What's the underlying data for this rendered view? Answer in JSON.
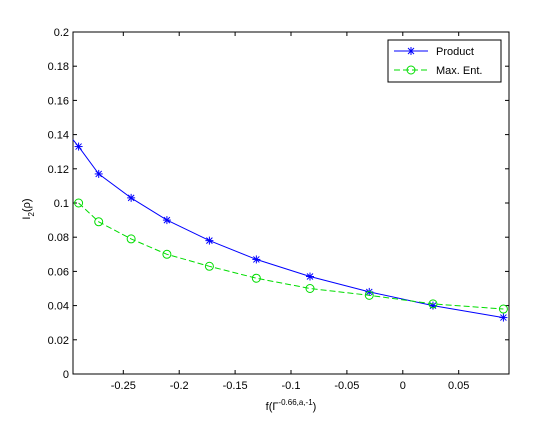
{
  "chart_data": {
    "type": "line",
    "title": "",
    "xlabel": "f(Γ^{-0.66,a,-1})",
    "xlabel_parts": {
      "base": "f(Γ",
      "sup": "-0.66,a,-1",
      "tail": ")"
    },
    "ylabel": "I_2(ρ)",
    "ylabel_parts": {
      "base": "I",
      "sub": "2",
      "tail": "(ρ)"
    },
    "xlim": [
      -0.295,
      0.095
    ],
    "ylim": [
      0,
      0.2
    ],
    "xticks": [
      -0.25,
      -0.2,
      -0.15,
      -0.1,
      -0.05,
      0,
      0.05
    ],
    "xtick_labels": [
      "-0.25",
      "-0.2",
      "-0.15",
      "-0.1",
      "-0.05",
      "0",
      "0.05"
    ],
    "yticks": [
      0,
      0.02,
      0.04,
      0.06,
      0.08,
      0.1,
      0.12,
      0.14,
      0.16,
      0.18,
      0.2
    ],
    "ytick_labels": [
      "0",
      "0.02",
      "0.04",
      "0.06",
      "0.08",
      "0.1",
      "0.12",
      "0.14",
      "0.16",
      "0.18",
      "0.2"
    ],
    "grid": false,
    "legend_position": "top-right",
    "series": [
      {
        "name": "Product",
        "color": "#0000ff",
        "line_style": "solid",
        "marker": "asterisk",
        "curve": [
          [
            -0.295,
            0.137
          ],
          [
            -0.29,
            0.133
          ],
          [
            -0.272,
            0.117
          ],
          [
            -0.243,
            0.103
          ],
          [
            -0.211,
            0.09
          ],
          [
            -0.173,
            0.078
          ],
          [
            -0.131,
            0.067
          ],
          [
            -0.083,
            0.057
          ],
          [
            -0.03,
            0.048
          ],
          [
            0.027,
            0.04
          ],
          [
            0.09,
            0.033
          ]
        ],
        "markers": [
          [
            -0.29,
            0.133
          ],
          [
            -0.272,
            0.117
          ],
          [
            -0.243,
            0.103
          ],
          [
            -0.211,
            0.09
          ],
          [
            -0.173,
            0.078
          ],
          [
            -0.131,
            0.067
          ],
          [
            -0.083,
            0.057
          ],
          [
            -0.03,
            0.048
          ],
          [
            0.027,
            0.04
          ],
          [
            0.09,
            0.033
          ]
        ]
      },
      {
        "name": "Max. Ent.",
        "color": "#00dd00",
        "line_style": "dashed",
        "marker": "circle",
        "curve": [
          [
            -0.29,
            0.1
          ],
          [
            -0.272,
            0.089
          ],
          [
            -0.243,
            0.079
          ],
          [
            -0.211,
            0.07
          ],
          [
            -0.173,
            0.063
          ],
          [
            -0.131,
            0.056
          ],
          [
            -0.083,
            0.05
          ],
          [
            -0.03,
            0.046
          ],
          [
            0.027,
            0.041
          ],
          [
            0.09,
            0.038
          ]
        ],
        "markers": [
          [
            -0.29,
            0.1
          ],
          [
            -0.272,
            0.089
          ],
          [
            -0.243,
            0.079
          ],
          [
            -0.211,
            0.07
          ],
          [
            -0.173,
            0.063
          ],
          [
            -0.131,
            0.056
          ],
          [
            -0.083,
            0.05
          ],
          [
            -0.03,
            0.046
          ],
          [
            0.027,
            0.041
          ],
          [
            0.09,
            0.038
          ]
        ]
      }
    ]
  }
}
